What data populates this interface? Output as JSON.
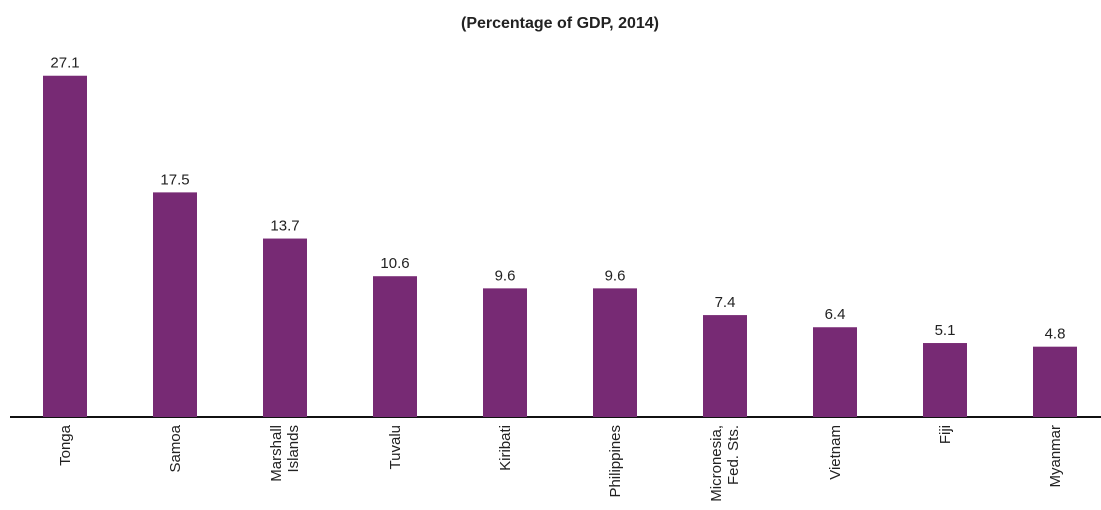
{
  "chart_data": {
    "type": "bar",
    "title": "(Percentage of GDP, 2014)",
    "categories": [
      "Tonga",
      "Samoa",
      "Marshall Islands",
      "Tuvalu",
      "Kiribati",
      "Philippines",
      "Micronesia, Fed. Sts.",
      "Vietnam",
      "Fiji",
      "Myanmar"
    ],
    "values": [
      27.1,
      17.5,
      13.7,
      10.6,
      9.6,
      9.6,
      7.4,
      6.4,
      5.1,
      4.8
    ],
    "color": "#772a74"
  }
}
